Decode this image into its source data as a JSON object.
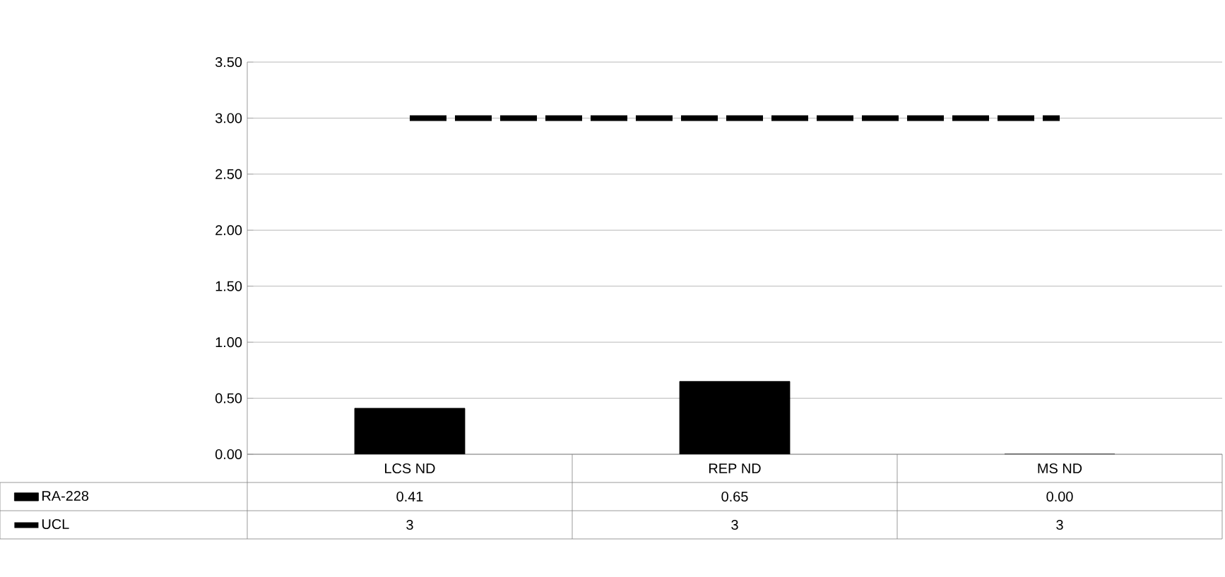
{
  "chart_data": {
    "type": "bar",
    "categories": [
      "LCS ND",
      "REP ND",
      "MS ND"
    ],
    "series": [
      {
        "name": "RA-228",
        "color": "#000000",
        "values": [
          0.41,
          0.65,
          0.0
        ],
        "value_labels": [
          "0.41",
          "0.65",
          "0.00"
        ]
      },
      {
        "name": "UCL",
        "type": "line",
        "color": "#000000",
        "line_style": "dashed",
        "marker": "none",
        "values": [
          3,
          3,
          3
        ],
        "value_labels": [
          "3",
          "3",
          "3"
        ]
      }
    ],
    "ylim": [
      0,
      3.5
    ],
    "yticks": [
      {
        "value": 0,
        "label": "0.00"
      },
      {
        "value": 0.5,
        "label": "0.50"
      },
      {
        "value": 1,
        "label": "1.00"
      },
      {
        "value": 1.5,
        "label": "1.50"
      },
      {
        "value": 2,
        "label": "2.00"
      },
      {
        "value": 2.5,
        "label": "2.50"
      },
      {
        "value": 3,
        "label": "3.00"
      },
      {
        "value": 3.5,
        "label": "3.50"
      }
    ],
    "grid": "y",
    "legend": "bottom"
  }
}
